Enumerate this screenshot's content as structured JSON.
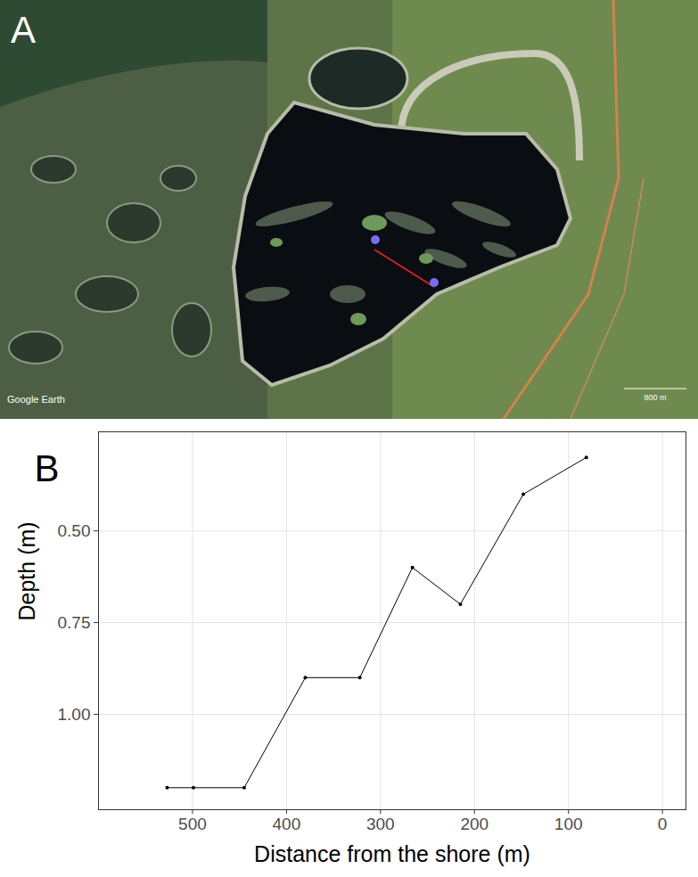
{
  "map": {
    "label": "A",
    "watermark": "Google Earth",
    "scale_label": "800 m"
  },
  "chart_data": {
    "type": "line",
    "panel_label": "B",
    "x_label": "Distance from the shore (m)",
    "y_label": "Depth (m)",
    "x": [
      527,
      499,
      445,
      380,
      322,
      266,
      215,
      148,
      81
    ],
    "values": [
      1.2,
      1.2,
      1.2,
      0.9,
      0.9,
      0.6,
      0.7,
      0.4,
      0.3
    ],
    "color": "#000000",
    "marker": "circle",
    "xlim": [
      600,
      -25
    ],
    "xticks": [
      500,
      400,
      300,
      200,
      100,
      0
    ],
    "ylim": [
      1.26,
      0.23
    ],
    "yticks": [
      {
        "value": 0.5,
        "label": "0.50"
      },
      {
        "value": 0.75,
        "label": "0.75"
      },
      {
        "value": 1.0,
        "label": "1.00"
      }
    ],
    "grid": true
  }
}
